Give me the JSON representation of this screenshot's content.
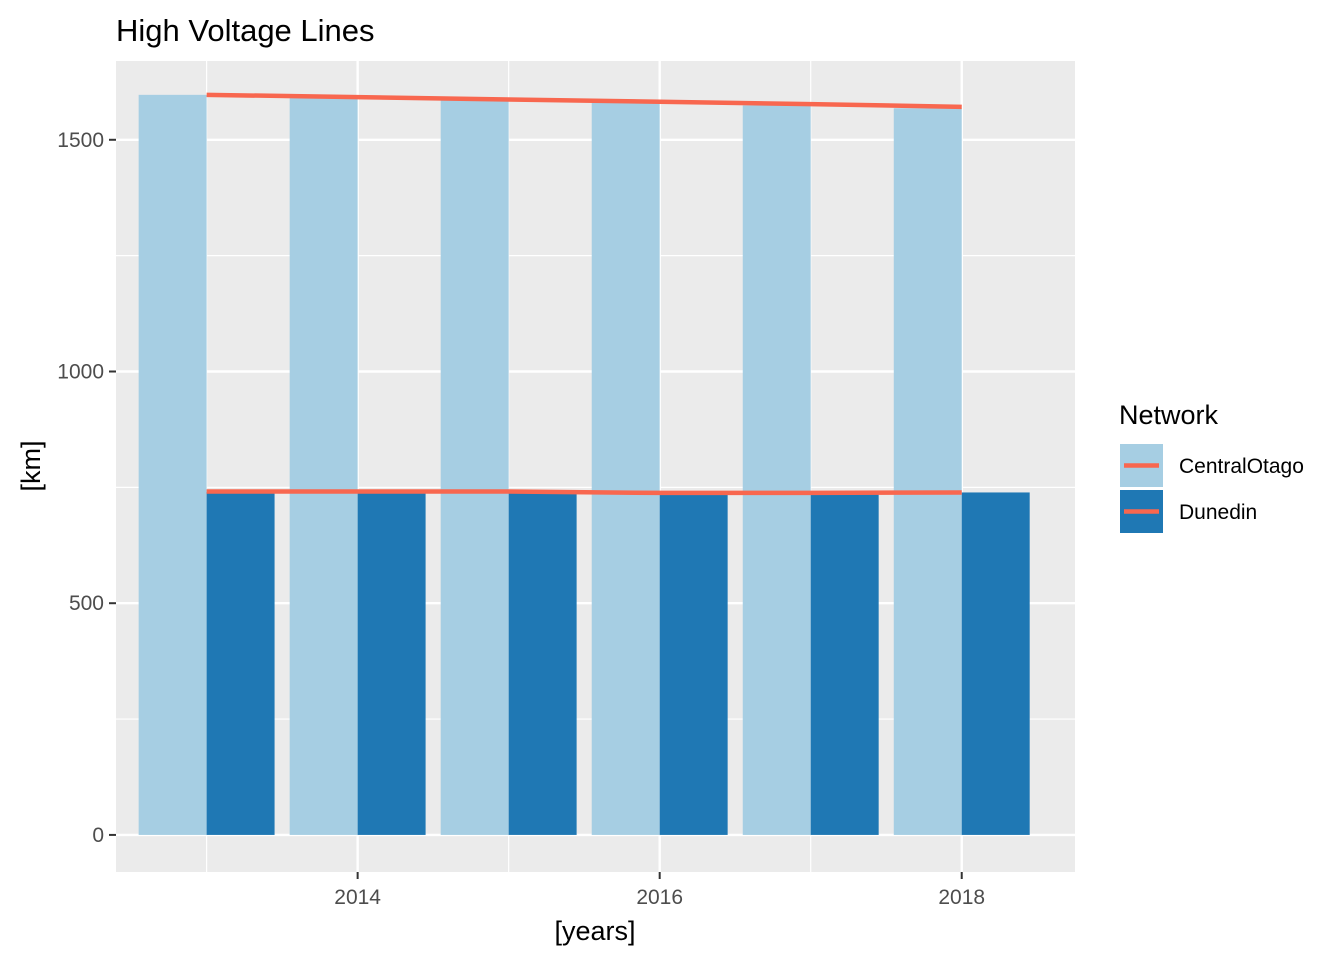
{
  "chart_data": {
    "type": "bar",
    "title": "High Voltage Lines",
    "xlabel": "[years]",
    "ylabel": "[km]",
    "x": [
      2013,
      2014,
      2015,
      2016,
      2017,
      2018
    ],
    "x_ticks": [
      2014,
      2016,
      2018
    ],
    "y_ticks": [
      0,
      500,
      1000,
      1500
    ],
    "xlim": [
      2012.4,
      2018.75
    ],
    "ylim": [
      -80,
      1670
    ],
    "grid": true,
    "legend": {
      "title": "Network",
      "position": "right"
    },
    "series": [
      {
        "name": "CentralOtago",
        "color": "#a6cee3",
        "values": [
          1597,
          1590,
          1585,
          1580,
          1574,
          1568
        ],
        "line_values": [
          1597,
          1592,
          1587,
          1582,
          1577,
          1571
        ]
      },
      {
        "name": "Dunedin",
        "color": "#1f78b4",
        "values": [
          740,
          740,
          740,
          736,
          736,
          739
        ],
        "line_values": [
          741,
          741,
          741,
          738,
          738,
          739
        ]
      }
    ],
    "line_color": "#f8674f"
  }
}
